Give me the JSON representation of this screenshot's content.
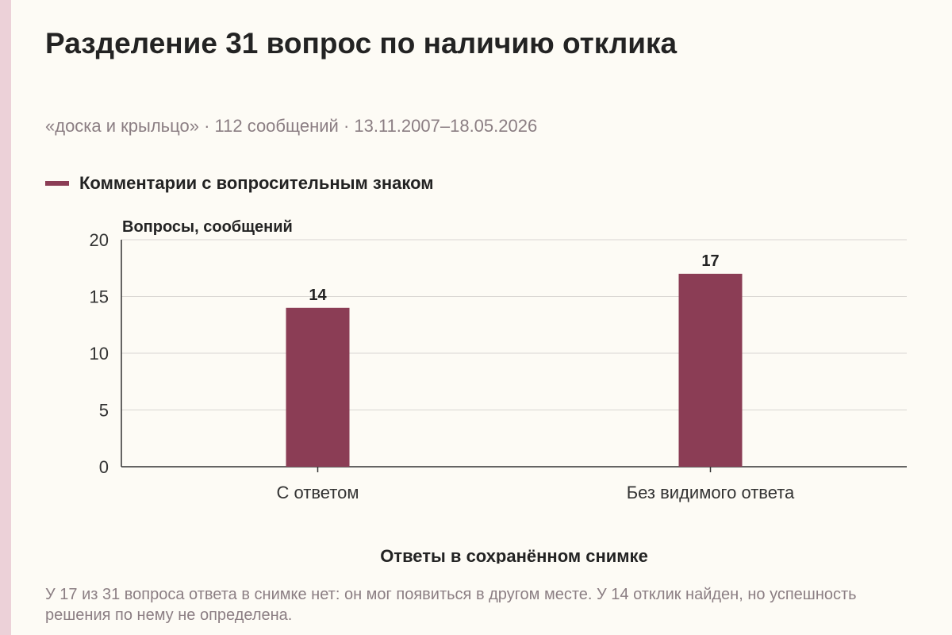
{
  "page": {
    "title": "Разделение 31 вопрос по наличию отклика",
    "subtitle": "«доска и крыльцо» · 112 сообщений · 13.11.2007–18.05.2026",
    "footnote": "У 17 из 31 вопроса ответа в снимке нет: он мог появиться в другом месте. У 14 отклик найден, но успешность решения по нему не определена."
  },
  "colors": {
    "bar": "#8b3d55",
    "background": "#fdfbf5",
    "accent_strip": "#ecd1d8",
    "muted_text": "#8b7e83",
    "grid": "#d9d6d2"
  },
  "chart_data": {
    "type": "bar",
    "categories": [
      "С ответом",
      "Без видимого ответа"
    ],
    "series": [
      {
        "name": "Комментарии с вопросительным знаком",
        "values": [
          14,
          17
        ]
      }
    ],
    "data_labels": [
      "14",
      "17"
    ],
    "ylabel": "Вопросы, сообщений",
    "xlabel": "Ответы в сохранённом снимке",
    "ylim": [
      0,
      20
    ],
    "yticks": [
      0,
      5,
      10,
      15,
      20
    ],
    "grid": true,
    "legend_position": "top-left"
  }
}
